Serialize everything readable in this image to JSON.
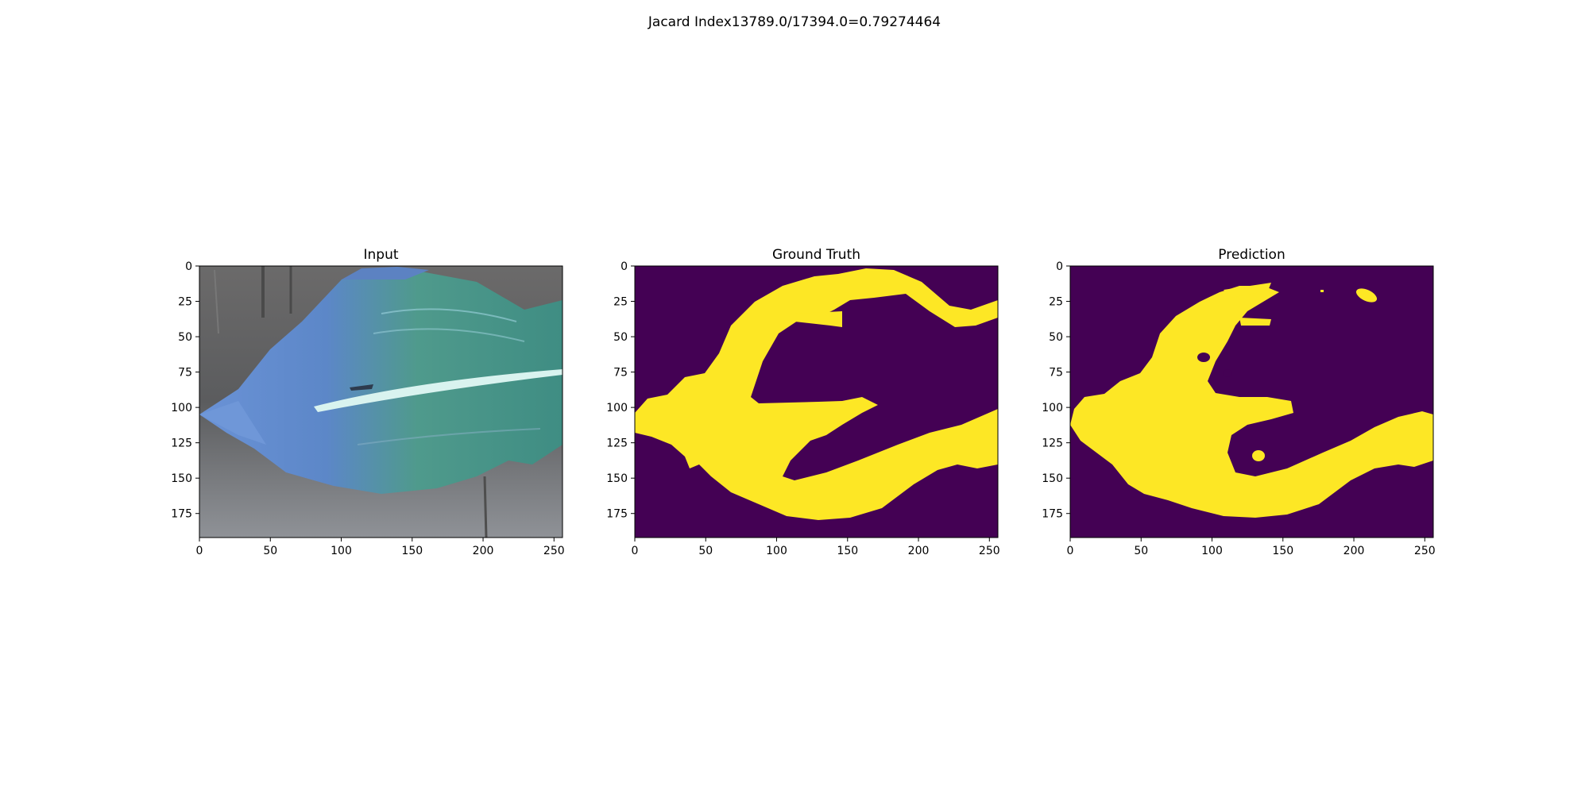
{
  "figure": {
    "suptitle": "Jacard Index13789.0/17394.0=0.79274464"
  },
  "chart_data": [
    {
      "type": "image",
      "title": "Input",
      "xlim": [
        0,
        256
      ],
      "ylim": [
        192,
        0
      ],
      "xticks": [
        0,
        50,
        100,
        150,
        200,
        250
      ],
      "yticks": [
        0,
        25,
        50,
        75,
        100,
        125,
        150,
        175
      ],
      "content": "leaf photograph",
      "colors": {
        "background": "#595a5c",
        "leaf_blue": "#5f86c7",
        "leaf_green": "#4f9a86",
        "midrib": "#d9f3ef"
      }
    },
    {
      "type": "heatmap",
      "title": "Ground Truth",
      "xlim": [
        0,
        256
      ],
      "ylim": [
        192,
        0
      ],
      "xticks": [
        0,
        50,
        100,
        150,
        200,
        250
      ],
      "yticks": [
        0,
        25,
        50,
        75,
        100,
        125,
        150,
        175
      ],
      "values": [
        0,
        1
      ],
      "colors": {
        "0": "#440154",
        "1": "#fde725"
      }
    },
    {
      "type": "heatmap",
      "title": "Prediction",
      "xlim": [
        0,
        256
      ],
      "ylim": [
        192,
        0
      ],
      "xticks": [
        0,
        50,
        100,
        150,
        200,
        250
      ],
      "yticks": [
        0,
        25,
        50,
        75,
        100,
        125,
        150,
        175
      ],
      "values": [
        0,
        1
      ],
      "colors": {
        "0": "#440154",
        "1": "#fde725"
      }
    }
  ]
}
